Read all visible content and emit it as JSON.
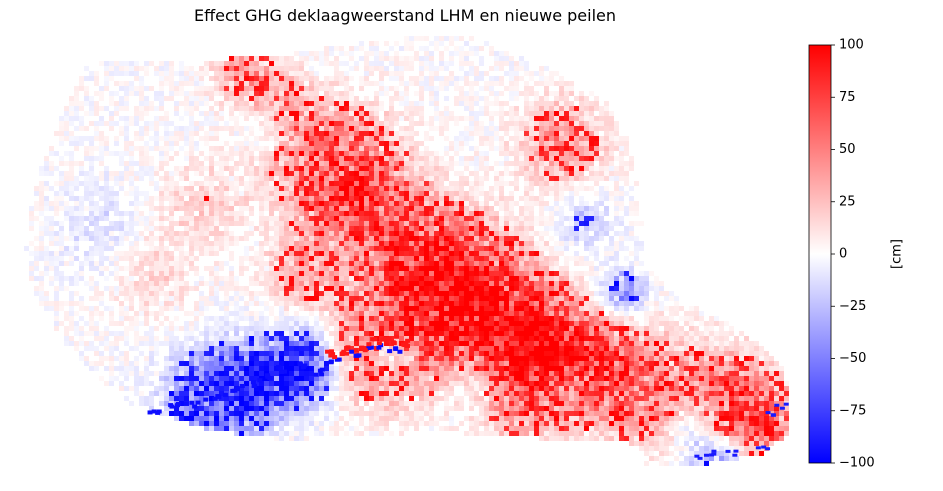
{
  "chart_data": {
    "type": "heatmap",
    "title": "Effect GHG deklaagweerstand LHM en nieuwe peilen",
    "colormap": "bwr",
    "colorbar": {
      "label": "[cm]",
      "vmin": -100,
      "vmax": 100,
      "ticks": [
        100,
        75,
        50,
        25,
        0,
        -25,
        -50,
        -75,
        -100
      ],
      "tick_labels": [
        "100",
        "75",
        "50",
        "25",
        "0",
        "−25",
        "−50",
        "−75",
        "−100"
      ],
      "colors": {
        "low": "#0000ff",
        "mid": "#ffffff",
        "high": "#ff0000"
      }
    },
    "axes_visible": false,
    "field_description": "Map of GHG change; mostly near 0 (white) with positive values (red) along river corridors and negative values (blue) along the southern river edge."
  }
}
